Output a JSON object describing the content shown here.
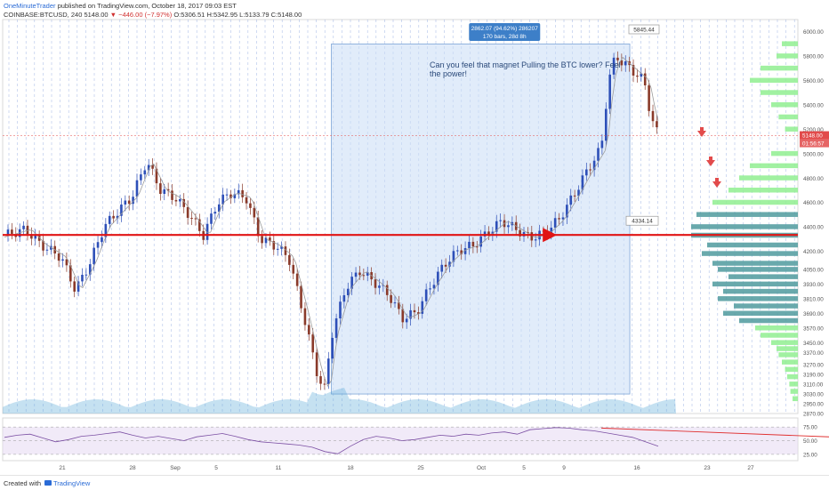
{
  "header": {
    "author": "OneMinuteTrader",
    "published": "published on TradingView.com, October 18, 2017 09:03 EST",
    "symbol": "COINBASE:BTCUSD, 240",
    "last": "5148.00",
    "change": "▼ −446.00 (−7.97%)",
    "open": "O:5306.51",
    "high": "H:5342.95",
    "low": "L:5133.79",
    "close": "C:5148.00"
  },
  "footer": {
    "created": "Created with",
    "brand": "TradingView"
  },
  "colors": {
    "up": "#2d4fb8",
    "down": "#8a3a2a",
    "ma": "#e03030",
    "hline": "#e11414",
    "annotation_box": "#c8dcf5",
    "rsi_line": "#7b4fa3",
    "rsi_band": "#e8dcf3",
    "vp_green": "#90ee90",
    "vp_teal": "#4f9a9e",
    "price_tag": "#e24b4b"
  },
  "chart_data": {
    "type": "candlestick",
    "title": "",
    "ylim": [
      2870,
      6100
    ],
    "y_ticks": [
      "6000.00",
      "5800.00",
      "5600.00",
      "5400.00",
      "5200.00",
      "5000.00",
      "4800.00",
      "4600.00",
      "4400.00",
      "4200.00",
      "4050.00",
      "3930.00",
      "3810.00",
      "3690.00",
      "3570.00",
      "3450.00",
      "3370.00",
      "3270.00",
      "3190.00",
      "3110.00",
      "3030.00",
      "2950.00",
      "2870.00"
    ],
    "x_ticks": [
      "21",
      "28",
      "Sep",
      "5",
      "11",
      "18",
      "25",
      "Oct",
      "5",
      "9",
      "16",
      "23",
      "27"
    ],
    "current_price": "5148.00",
    "countdown": "01:56:57",
    "horizontal_line": 4334.14,
    "horizontal_line_label": "4334.14",
    "high_label": "5845.44",
    "measure_box": {
      "line1": "2862.07 (94.62%) 286207",
      "line2": "170 bars, 28d 8h"
    },
    "annotation": "Can you feel that magnet Pulling the BTC lower? Feel the power!",
    "price_path": [
      [
        0,
        4330
      ],
      [
        3,
        4380
      ],
      [
        5,
        4260
      ],
      [
        8,
        4150
      ],
      [
        10,
        3880
      ],
      [
        12,
        4100
      ],
      [
        14,
        4400
      ],
      [
        16,
        4530
      ],
      [
        18,
        4650
      ],
      [
        20,
        4940
      ],
      [
        22,
        4700
      ],
      [
        24,
        4640
      ],
      [
        26,
        4500
      ],
      [
        28,
        4330
      ],
      [
        30,
        4600
      ],
      [
        32,
        4680
      ],
      [
        34,
        4640
      ],
      [
        36,
        4300
      ],
      [
        38,
        4250
      ],
      [
        40,
        4150
      ],
      [
        42,
        3700
      ],
      [
        44,
        3200
      ],
      [
        45,
        3050
      ],
      [
        46,
        3500
      ],
      [
        48,
        3900
      ],
      [
        50,
        4040
      ],
      [
        52,
        3950
      ],
      [
        54,
        3850
      ],
      [
        56,
        3650
      ],
      [
        58,
        3700
      ],
      [
        60,
        3920
      ],
      [
        62,
        4100
      ],
      [
        64,
        4210
      ],
      [
        66,
        4250
      ],
      [
        68,
        4350
      ],
      [
        70,
        4450
      ],
      [
        72,
        4380
      ],
      [
        74,
        4310
      ],
      [
        76,
        4350
      ],
      [
        78,
        4460
      ],
      [
        80,
        4650
      ],
      [
        82,
        4860
      ],
      [
        84,
        5050
      ],
      [
        85,
        5600
      ],
      [
        86,
        5800
      ],
      [
        88,
        5700
      ],
      [
        90,
        5600
      ],
      [
        91,
        5300
      ],
      [
        92,
        5148
      ]
    ],
    "x_range": [
      0,
      92
    ],
    "rsi": {
      "levels": [
        "75.00",
        "50.00",
        "25.00"
      ],
      "values": [
        56,
        60,
        62,
        55,
        48,
        52,
        58,
        60,
        63,
        66,
        60,
        55,
        58,
        54,
        50,
        57,
        60,
        63,
        58,
        52,
        48,
        46,
        44,
        42,
        38,
        30,
        26,
        40,
        52,
        58,
        55,
        50,
        52,
        56,
        60,
        58,
        62,
        60,
        64,
        66,
        62,
        70,
        72,
        74,
        73,
        70,
        68,
        64,
        60,
        56,
        48,
        40
      ],
      "trendline": [
        [
          84,
          73
        ],
        [
          120,
          55
        ]
      ]
    },
    "volume_profile": [
      [
        5900,
        0.15,
        "green"
      ],
      [
        5800,
        0.2,
        "green"
      ],
      [
        5700,
        0.35,
        "green"
      ],
      [
        5600,
        0.45,
        "green"
      ],
      [
        5500,
        0.35,
        "green"
      ],
      [
        5400,
        0.25,
        "green"
      ],
      [
        5300,
        0.18,
        "green"
      ],
      [
        5200,
        0.12,
        "green"
      ],
      [
        5000,
        0.25,
        "green"
      ],
      [
        4900,
        0.45,
        "green"
      ],
      [
        4800,
        0.55,
        "green"
      ],
      [
        4700,
        0.65,
        "green"
      ],
      [
        4600,
        0.8,
        "green"
      ],
      [
        4500,
        0.95,
        "teal"
      ],
      [
        4400,
        1.0,
        "teal"
      ],
      [
        4330,
        1.0,
        "teal"
      ],
      [
        4250,
        0.85,
        "teal"
      ],
      [
        4180,
        0.9,
        "teal"
      ],
      [
        4100,
        0.8,
        "teal"
      ],
      [
        4050,
        0.75,
        "teal"
      ],
      [
        3990,
        0.65,
        "teal"
      ],
      [
        3930,
        0.8,
        "teal"
      ],
      [
        3870,
        0.7,
        "teal"
      ],
      [
        3810,
        0.75,
        "teal"
      ],
      [
        3750,
        0.6,
        "teal"
      ],
      [
        3690,
        0.7,
        "teal"
      ],
      [
        3630,
        0.55,
        "teal"
      ],
      [
        3570,
        0.4,
        "green"
      ],
      [
        3510,
        0.35,
        "green"
      ],
      [
        3450,
        0.25,
        "green"
      ],
      [
        3400,
        0.2,
        "green"
      ],
      [
        3350,
        0.18,
        "green"
      ],
      [
        3290,
        0.15,
        "green"
      ],
      [
        3230,
        0.12,
        "green"
      ],
      [
        3170,
        0.1,
        "green"
      ],
      [
        3110,
        0.08,
        "green"
      ],
      [
        3050,
        0.07,
        "green"
      ],
      [
        2990,
        0.05,
        "green"
      ]
    ]
  }
}
